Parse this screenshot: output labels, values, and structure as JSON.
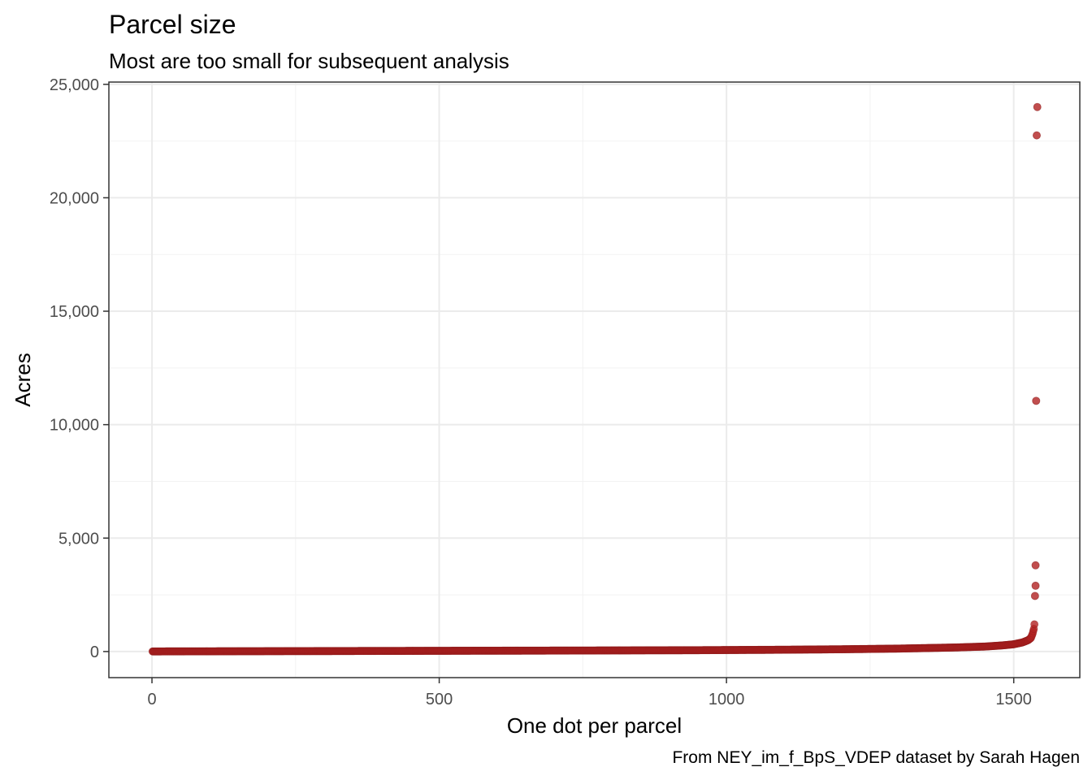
{
  "chart_data": {
    "type": "scatter",
    "title": "Parcel size",
    "subtitle": "Most are too small for subsequent analysis",
    "xlabel": "One dot per parcel",
    "ylabel": "Acres",
    "caption": "From NEY_im_f_BpS_VDEP dataset by Sarah Hagen",
    "xlim": [
      -75,
      1615
    ],
    "ylim": [
      -1150,
      25100
    ],
    "x_ticks": [
      0,
      500,
      1000,
      1500
    ],
    "x_tick_labels": [
      "0",
      "500",
      "1000",
      "1500"
    ],
    "y_ticks": [
      0,
      5000,
      10000,
      15000,
      20000,
      25000
    ],
    "y_tick_labels": [
      "0",
      "5,000",
      "10,000",
      "15,000",
      "20,000",
      "25,000"
    ],
    "grid": true,
    "point_color": "#B22222",
    "n_points": 1540,
    "sorted_ascending": true,
    "curve_approx": [
      [
        1,
        5
      ],
      [
        250,
        18
      ],
      [
        500,
        32
      ],
      [
        750,
        45
      ],
      [
        960,
        60
      ],
      [
        1100,
        80
      ],
      [
        1200,
        100
      ],
      [
        1300,
        130
      ],
      [
        1400,
        180
      ],
      [
        1450,
        220
      ],
      [
        1480,
        270
      ],
      [
        1500,
        320
      ],
      [
        1515,
        400
      ],
      [
        1525,
        500
      ],
      [
        1530,
        600
      ],
      [
        1533,
        800
      ],
      [
        1535,
        1000
      ],
      [
        1536,
        1200
      ]
    ],
    "outliers": [
      {
        "x": 1537,
        "y": 2450
      },
      {
        "x": 1538,
        "y": 2900
      },
      {
        "x": 1538,
        "y": 3800
      },
      {
        "x": 1539,
        "y": 11050
      },
      {
        "x": 1540,
        "y": 22750
      },
      {
        "x": 1541,
        "y": 24000
      }
    ]
  }
}
